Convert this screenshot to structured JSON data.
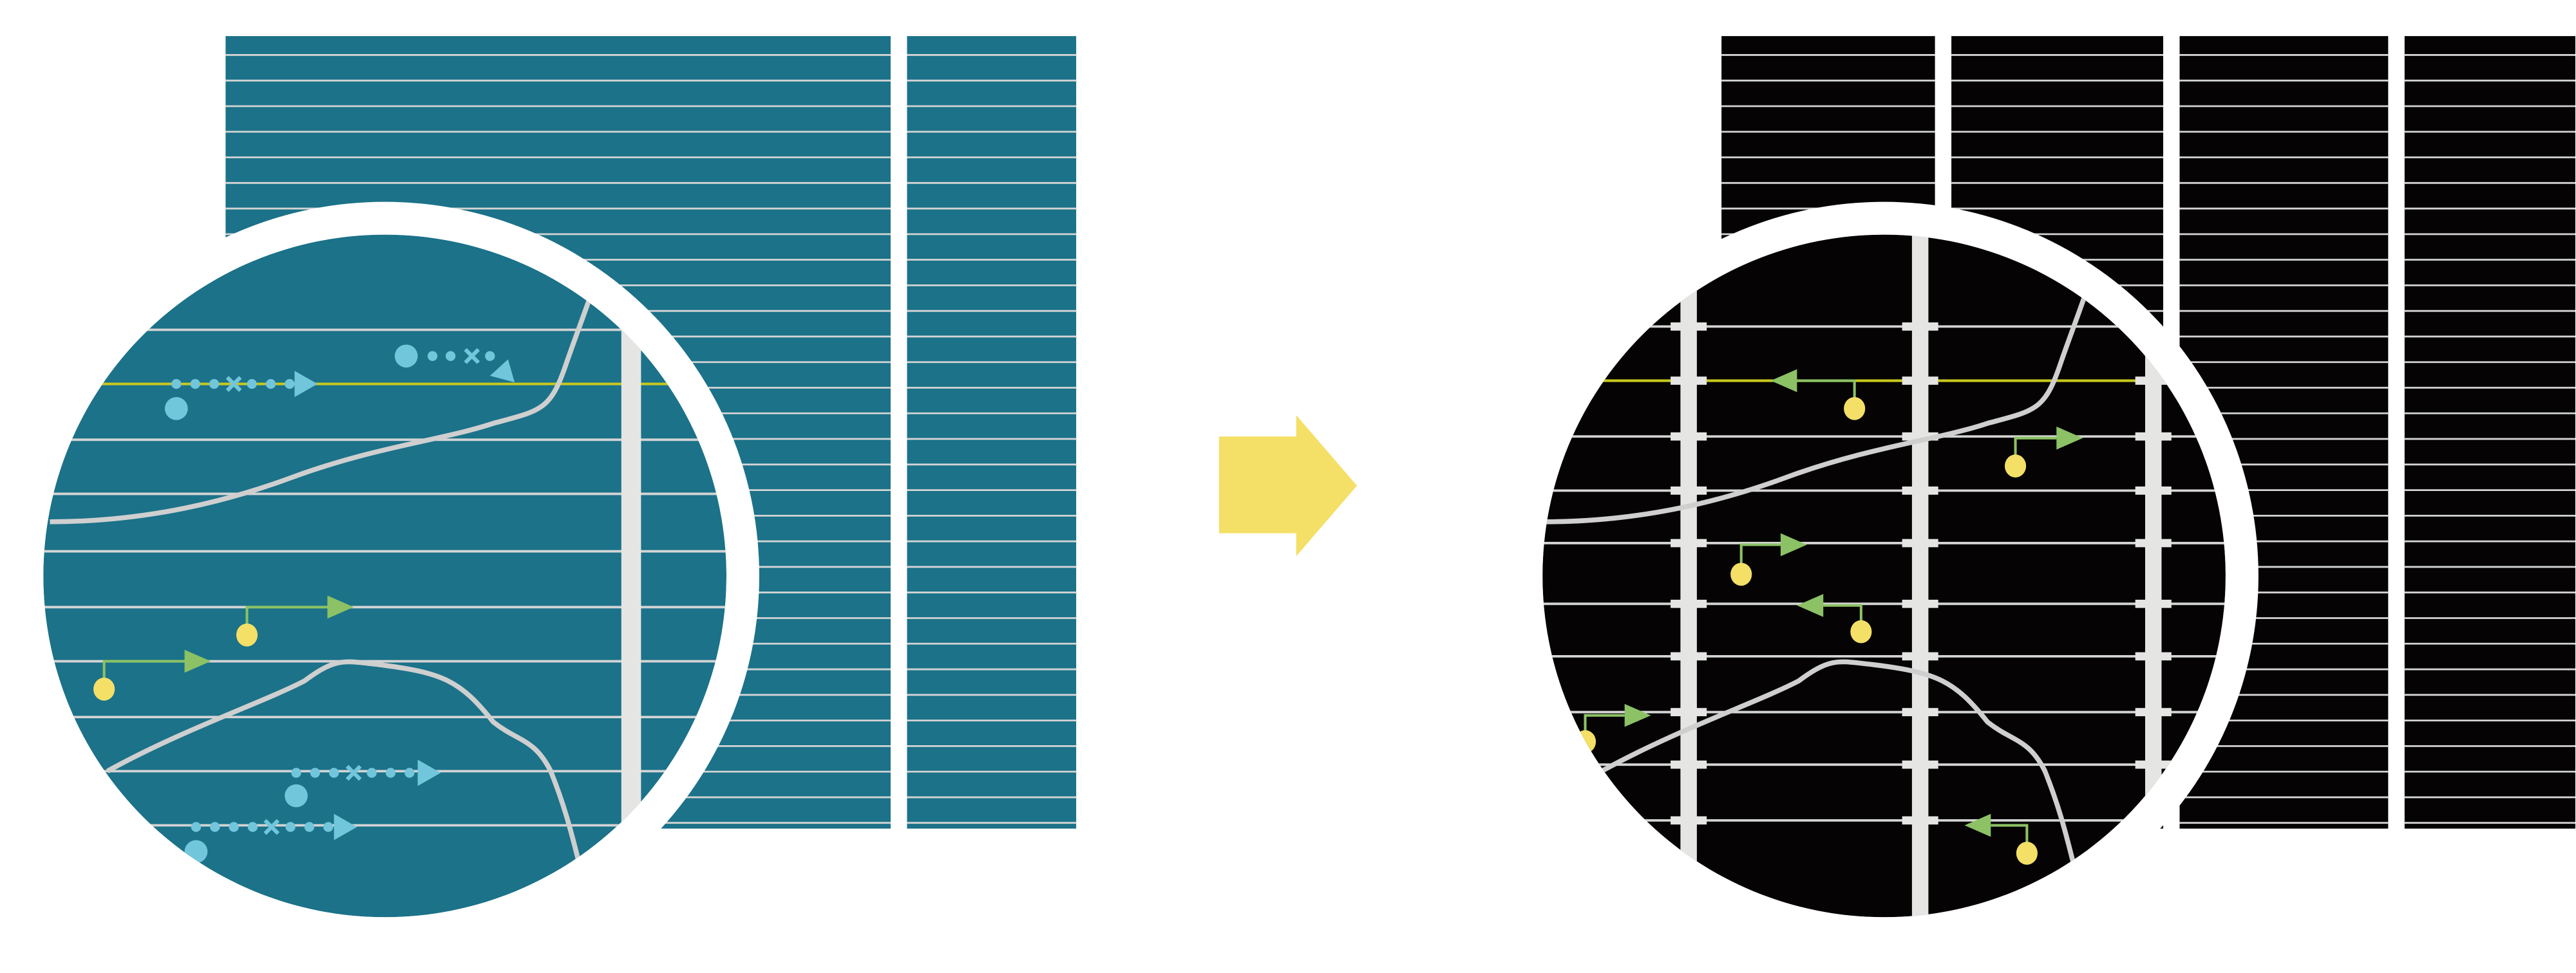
{
  "colors": {
    "background": "#ffffff",
    "before_fill": "#1b7289",
    "after_fill": "#050303",
    "grid_line": "#d4d4d4",
    "bar": "#e5e5e3",
    "highlight_line": "#c8c81e",
    "curve": "#cfcfcf",
    "blue_marker": "#72c6dc",
    "green_arrow": "#8cc265",
    "yellow_dot": "#f4df67",
    "transition_arrow": "#f4df67"
  },
  "icons": {
    "transition": "arrow-right-icon",
    "blue_marker": "dotted-arrow-with-cross-icon",
    "green_marker": "pin-arrow-icon"
  },
  "before": {
    "blue_markers": [
      {
        "row": 1,
        "direction": "right"
      },
      {
        "row": 0,
        "direction": "down-right"
      },
      {
        "row": 8,
        "direction": "right"
      },
      {
        "row": 9,
        "direction": "right"
      }
    ],
    "green_markers": [
      {
        "row": 5,
        "direction": "right"
      },
      {
        "row": 6,
        "direction": "right"
      }
    ]
  },
  "after": {
    "green_markers": [
      {
        "row": 1,
        "direction": "left"
      },
      {
        "row": 2,
        "direction": "right"
      },
      {
        "row": 4,
        "direction": "right"
      },
      {
        "row": 5,
        "direction": "left"
      },
      {
        "row": 7,
        "direction": "right"
      },
      {
        "row": 9,
        "direction": "left"
      }
    ]
  }
}
